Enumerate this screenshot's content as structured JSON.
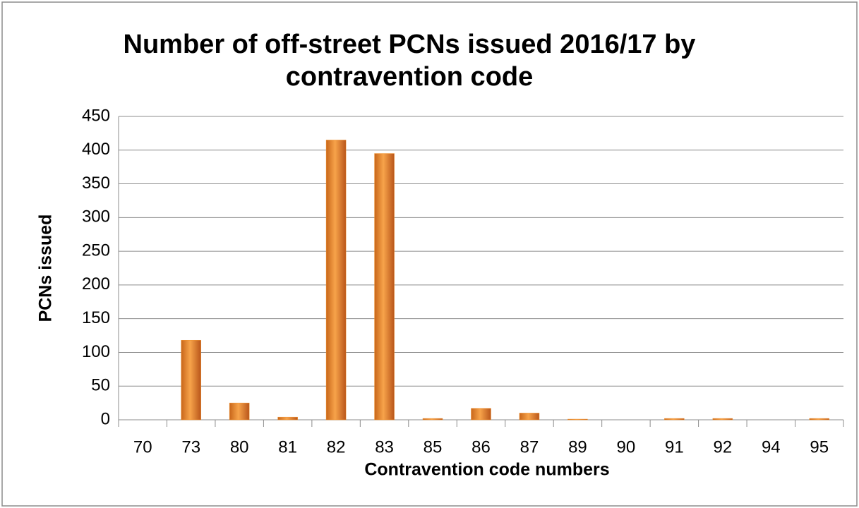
{
  "chart_data": {
    "type": "bar",
    "title": "Number of off-street PCNs issued 2016/17 by contravention code",
    "x_label": "Contravention code numbers",
    "y_label": "PCNs issued",
    "categories": [
      "70",
      "73",
      "80",
      "81",
      "82",
      "83",
      "85",
      "86",
      "87",
      "89",
      "90",
      "91",
      "92",
      "94",
      "95"
    ],
    "values": [
      0,
      118,
      25,
      4,
      415,
      395,
      2,
      17,
      10,
      1,
      0,
      2,
      2,
      0,
      2
    ],
    "color": "#f0922e",
    "ylim": [
      0,
      450
    ],
    "yticks": [
      0,
      50,
      100,
      150,
      200,
      250,
      300,
      350,
      400,
      450
    ],
    "grid": true
  }
}
